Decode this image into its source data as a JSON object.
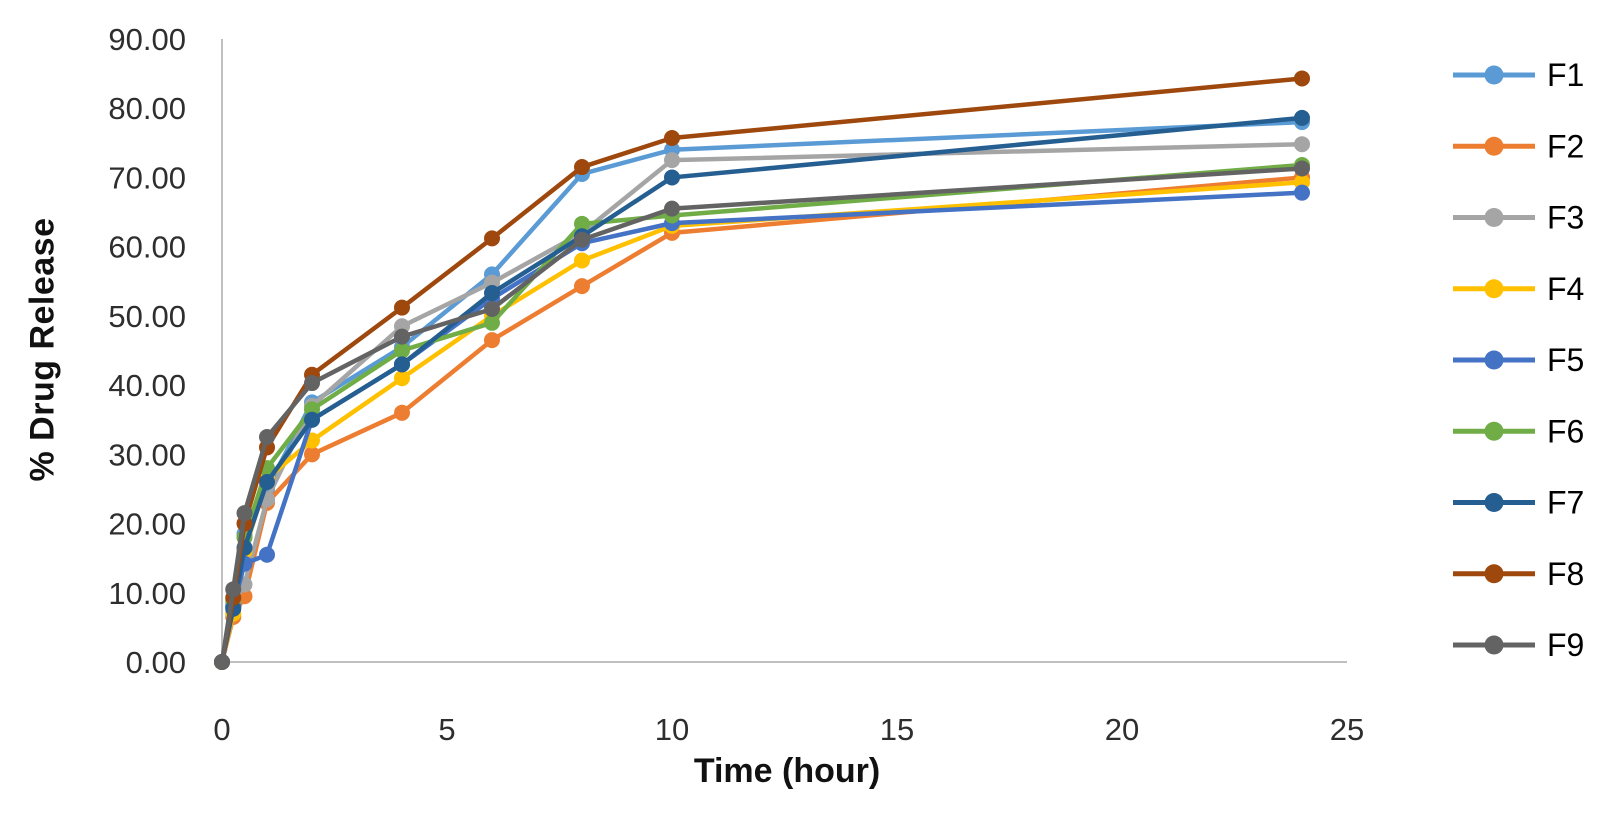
{
  "chart_data": {
    "type": "line",
    "title": "",
    "xlabel": "Time (hour)",
    "ylabel": "% Drug Release",
    "x": [
      0,
      0.25,
      0.5,
      1,
      2,
      4,
      6,
      8,
      10,
      24
    ],
    "series": [
      {
        "name": "F1",
        "color": "#5B9BD5",
        "values": [
          0,
          8.0,
          18.5,
          25.0,
          37.5,
          45.5,
          56.0,
          70.5,
          74.0,
          78.0
        ]
      },
      {
        "name": "F2",
        "color": "#ED7D31",
        "values": [
          0,
          6.5,
          9.5,
          23.0,
          30.0,
          36.0,
          46.5,
          54.3,
          62.0,
          70.0
        ]
      },
      {
        "name": "F3",
        "color": "#A5A5A5",
        "values": [
          0,
          8.5,
          11.2,
          23.5,
          37.0,
          48.5,
          54.8,
          62.0,
          72.5,
          74.8
        ]
      },
      {
        "name": "F4",
        "color": "#FFC000",
        "values": [
          0,
          7.0,
          16.0,
          26.5,
          32.0,
          41.0,
          50.0,
          58.0,
          63.0,
          69.3
        ]
      },
      {
        "name": "F5",
        "color": "#4472C4",
        "values": [
          0,
          8.0,
          14.2,
          15.5,
          35.0,
          43.0,
          52.5,
          60.5,
          63.4,
          67.8
        ]
      },
      {
        "name": "F6",
        "color": "#70AD47",
        "values": [
          0,
          9.0,
          18.0,
          28.0,
          36.5,
          45.0,
          49.0,
          63.3,
          64.5,
          71.8
        ]
      },
      {
        "name": "F7",
        "color": "#255E91",
        "values": [
          0,
          7.7,
          16.5,
          26.0,
          35.0,
          43.0,
          53.3,
          61.5,
          70.0,
          78.6
        ]
      },
      {
        "name": "F8",
        "color": "#9E480E",
        "values": [
          0,
          9.3,
          20.0,
          31.0,
          41.5,
          51.2,
          61.2,
          71.5,
          75.7,
          84.3
        ]
      },
      {
        "name": "F9",
        "color": "#636363",
        "values": [
          0,
          10.5,
          21.5,
          32.5,
          40.3,
          47.0,
          51.0,
          61.0,
          65.5,
          71.3
        ]
      }
    ],
    "xlim": [
      0,
      25
    ],
    "ylim": [
      0,
      90
    ],
    "x_ticks": [
      0,
      5,
      10,
      15,
      20,
      25
    ],
    "y_ticks": [
      "0.00",
      "10.00",
      "20.00",
      "30.00",
      "40.00",
      "50.00",
      "60.00",
      "70.00",
      "80.00",
      "90.00"
    ],
    "grid": false,
    "legend_position": "right",
    "axis_color": "#BFBFBF"
  }
}
